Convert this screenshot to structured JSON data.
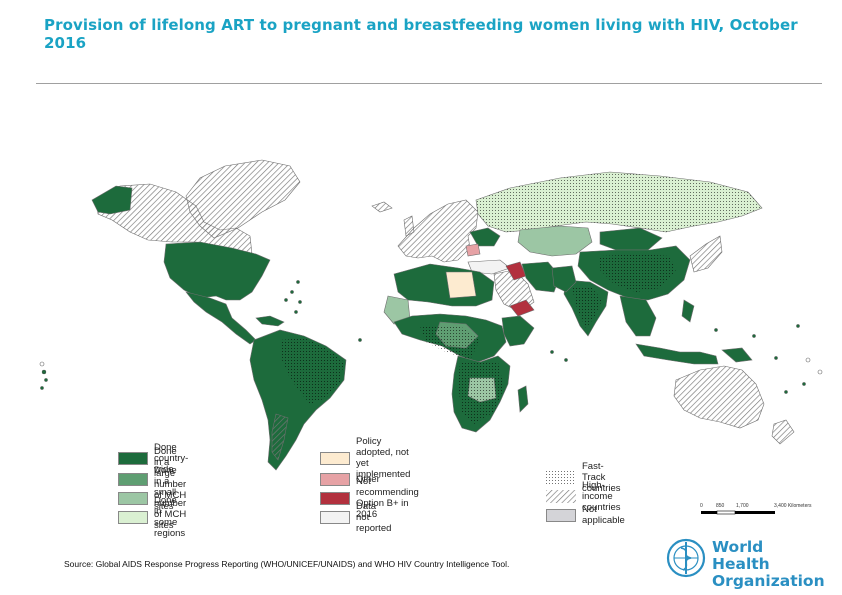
{
  "title": "Provision of lifelong ART to pregnant and breastfeeding women living with HIV, October 2016",
  "colors": {
    "done_country_wide": "#1d6b3c",
    "done_large": "#5f9e72",
    "done_small": "#9cc6a4",
    "done_regions": "#daf0d2",
    "policy_adopted": "#fdebd0",
    "other": "#e6a2a5",
    "not_recommending": "#b2313e",
    "data_not_reported": "#f3f3f3",
    "not_applicable": "#d4d4d8",
    "high_income": "#e7e7ea",
    "land_outline": "#6e6e6e"
  },
  "legend": {
    "left": [
      {
        "label": "Done country-wide",
        "color": "#1d6b3c"
      },
      {
        "label": "Done in a large number of MCH sites",
        "color": "#5f9e72"
      },
      {
        "label": "Done in a small number of MCH sites",
        "color": "#9cc6a4"
      },
      {
        "label": "Done in some regions",
        "color": "#daf0d2"
      }
    ],
    "middle": [
      {
        "label": "Policy adopted, not yet implemented",
        "color": "#fdebd0"
      },
      {
        "label": "Other",
        "color": "#e6a2a5"
      },
      {
        "label": "Not recommending Option B+ in 2016",
        "color": "#b2313e"
      },
      {
        "label": "Data not reported",
        "color": "#f3f3f3"
      }
    ],
    "right": [
      {
        "label": "Fast-Track countries",
        "pattern": "dots"
      },
      {
        "label": "High-income countries",
        "pattern": "hatch"
      },
      {
        "label": "Not applicable",
        "pattern": "solid"
      }
    ]
  },
  "scale": {
    "ticks": [
      "0",
      "850",
      "1,700",
      "3,400 Kilometers"
    ]
  },
  "source": "Source: Global AIDS Response Progress Reporting (WHO/UNICEF/UNAIDS) and WHO HIV Country Intelligence Tool.",
  "logo": {
    "line1": "World Health",
    "line2": "Organization"
  }
}
